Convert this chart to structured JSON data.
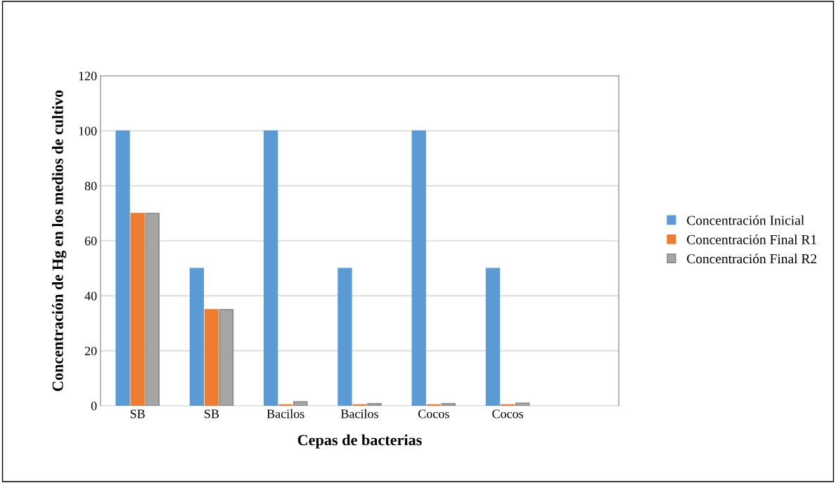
{
  "chart_data": {
    "type": "bar",
    "xlabel": "Cepas de bacterias",
    "ylabel": "Concentración de Hg en los medios de cultivo",
    "categories": [
      "SB",
      "SB",
      "Bacilos",
      "Bacilos",
      "Cocos",
      "Cocos",
      null
    ],
    "series": [
      {
        "name": "Concentración Inicial",
        "color": "#5b9bd5",
        "values": [
          100,
          50,
          100,
          50,
          100,
          50,
          null
        ]
      },
      {
        "name": "Concentración Final R1",
        "color": "#ed7d31",
        "values": [
          70,
          35,
          0.4,
          0.4,
          0.4,
          0.4,
          null
        ]
      },
      {
        "name": "Concentración Final R2",
        "color": "#a5a5a5",
        "values": [
          70,
          35,
          1.5,
          0.8,
          0.8,
          1.0,
          null
        ]
      }
    ],
    "ylim": [
      0,
      120
    ],
    "yticks": [
      0,
      20,
      40,
      60,
      80,
      100,
      120
    ],
    "grid": "y",
    "legend": "right"
  }
}
